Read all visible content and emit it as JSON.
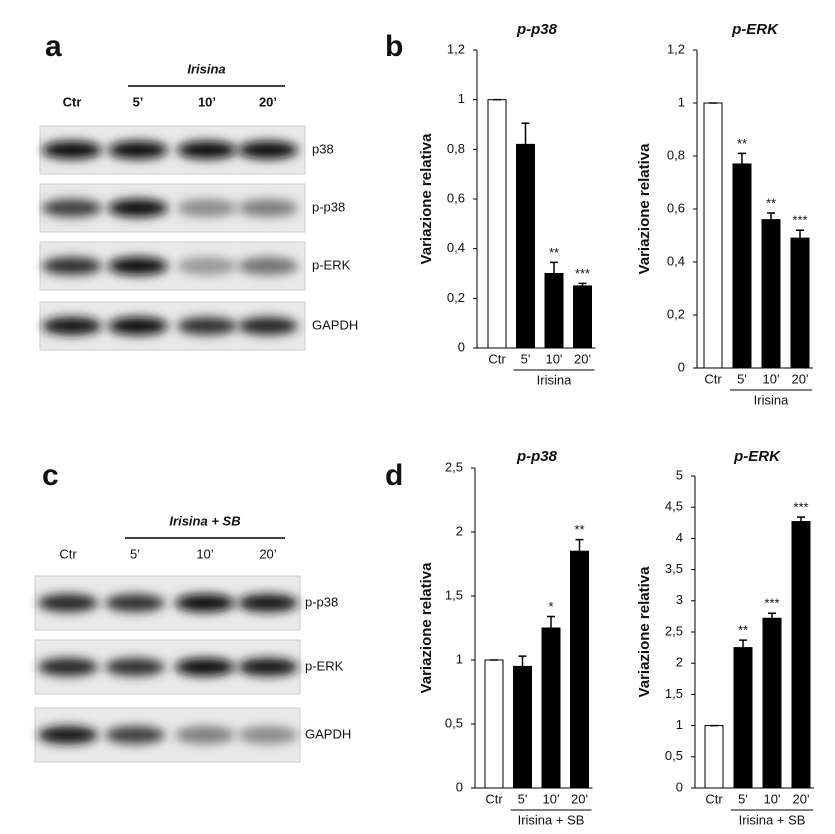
{
  "panel_labels": [
    "a",
    "b",
    "c",
    "d"
  ],
  "blots": [
    {
      "group_label": "Irisina",
      "lanes": [
        "Ctr",
        "5’",
        "10’",
        "20’"
      ],
      "rows": [
        "p38",
        "p-p38",
        "p-ERK",
        "GAPDH"
      ]
    },
    {
      "group_label": "Irisina + SB",
      "lanes": [
        "Ctr",
        "5’",
        "10’",
        "20’"
      ],
      "rows": [
        "p-p38",
        "p-ERK",
        "GAPDH"
      ]
    }
  ],
  "chart_data": [
    {
      "type": "bar",
      "title": "p-p38",
      "y_label": "Variazione relativa",
      "group_label": "Irisina",
      "categories": [
        "Ctr",
        "5'",
        "10'",
        "20'"
      ],
      "values": [
        1,
        0.82,
        0.3,
        0.25
      ],
      "errors": [
        0,
        0.085,
        0.045,
        0.01
      ],
      "significance": [
        null,
        null,
        "**",
        "***"
      ],
      "colors": [
        "#ffffff",
        "#000000",
        "#000000",
        "#000000"
      ],
      "ylim": [
        0,
        1.2
      ],
      "yticks": [
        0,
        {
          "value": 0.2,
          "label": "0,2"
        },
        {
          "value": 0.4,
          "label": "0,4"
        },
        {
          "value": 0.6,
          "label": "0,6"
        },
        {
          "value": 0.8,
          "label": "0,8"
        },
        1,
        {
          "value": 1.2,
          "label": "1,2"
        }
      ]
    },
    {
      "type": "bar",
      "title": "p-ERK",
      "y_label": "Variazione relativa",
      "group_label": "Irisina",
      "categories": [
        "Ctr",
        "5'",
        "10'",
        "20'"
      ],
      "values": [
        1,
        0.77,
        0.56,
        0.49
      ],
      "errors": [
        0,
        0.04,
        0.025,
        0.03
      ],
      "significance": [
        null,
        "**",
        "**",
        "***"
      ],
      "colors": [
        "#ffffff",
        "#000000",
        "#000000",
        "#000000"
      ],
      "ylim": [
        0,
        1.2
      ],
      "yticks": [
        0,
        {
          "value": 0.2,
          "label": "0,2"
        },
        {
          "value": 0.4,
          "label": "0,4"
        },
        {
          "value": 0.6,
          "label": "0,6"
        },
        {
          "value": 0.8,
          "label": "0,8"
        },
        1,
        {
          "value": 1.2,
          "label": "1,2"
        }
      ]
    },
    {
      "type": "bar",
      "title": "p-p38",
      "y_label": "Variazione relativa",
      "group_label": "Irisina + SB",
      "categories": [
        "Ctr",
        "5'",
        "10'",
        "20'"
      ],
      "values": [
        1,
        0.95,
        1.25,
        1.85
      ],
      "errors": [
        0,
        0.08,
        0.09,
        0.09
      ],
      "significance": [
        null,
        null,
        "*",
        "**"
      ],
      "colors": [
        "#ffffff",
        "#000000",
        "#000000",
        "#000000"
      ],
      "ylim": [
        0,
        2.5
      ],
      "yticks": [
        0,
        {
          "value": 0.5,
          "label": "0,5"
        },
        1,
        {
          "value": 1.5,
          "label": "1,5"
        },
        2,
        {
          "value": 2.5,
          "label": "2,5"
        }
      ]
    },
    {
      "type": "bar",
      "title": "p-ERK",
      "y_label": "Variazione relativa",
      "group_label": "Irisina + SB",
      "categories": [
        "Ctr",
        "5'",
        "10'",
        "20'"
      ],
      "values": [
        1,
        2.25,
        2.72,
        4.27
      ],
      "errors": [
        0,
        0.12,
        0.08,
        0.07
      ],
      "significance": [
        null,
        "**",
        "***",
        "***"
      ],
      "colors": [
        "#ffffff",
        "#000000",
        "#000000",
        "#000000"
      ],
      "ylim": [
        0,
        5
      ],
      "yticks": [
        0,
        {
          "value": 0.5,
          "label": "0,5"
        },
        1,
        {
          "value": 1.5,
          "label": "1,5"
        },
        2,
        {
          "value": 2.5,
          "label": "2,5"
        },
        3,
        {
          "value": 3.5,
          "label": "3,5"
        },
        4,
        {
          "value": 4.5,
          "label": "4,5"
        },
        5
      ]
    }
  ]
}
